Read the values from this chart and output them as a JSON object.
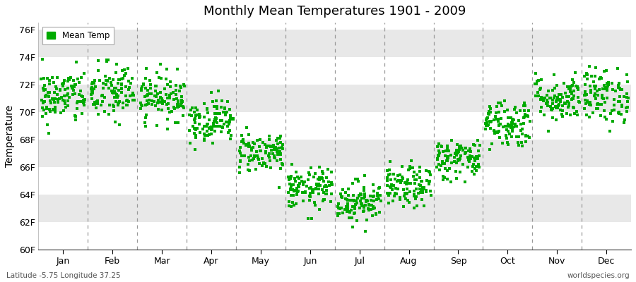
{
  "title": "Monthly Mean Temperatures 1901 - 2009",
  "ylabel": "Temperature",
  "ylim": [
    60,
    76.5
  ],
  "yticks": [
    60,
    62,
    64,
    66,
    68,
    70,
    72,
    74,
    76
  ],
  "ytick_labels": [
    "60F",
    "62F",
    "64F",
    "66F",
    "68F",
    "70F",
    "72F",
    "74F",
    "76F"
  ],
  "months": [
    "Jan",
    "Feb",
    "Mar",
    "Apr",
    "May",
    "Jun",
    "Jul",
    "Aug",
    "Sep",
    "Oct",
    "Nov",
    "Dec"
  ],
  "monthly_means": [
    71.1,
    71.4,
    71.1,
    69.4,
    67.1,
    64.4,
    63.5,
    64.5,
    66.6,
    69.2,
    71.0,
    71.2
  ],
  "monthly_stds": [
    1.0,
    1.1,
    0.85,
    0.8,
    0.75,
    0.75,
    0.75,
    0.75,
    0.75,
    0.9,
    0.85,
    1.0
  ],
  "n_years": 109,
  "dot_color": "#00aa00",
  "dot_size": 6,
  "bg_color": "#ffffff",
  "band_colors": [
    "#ffffff",
    "#e8e8e8"
  ],
  "dashed_line_color": "#999999",
  "legend_label": "Mean Temp",
  "bottom_left": "Latitude -5.75 Longitude 37.25",
  "bottom_right": "worldspecies.org",
  "seed": 42
}
